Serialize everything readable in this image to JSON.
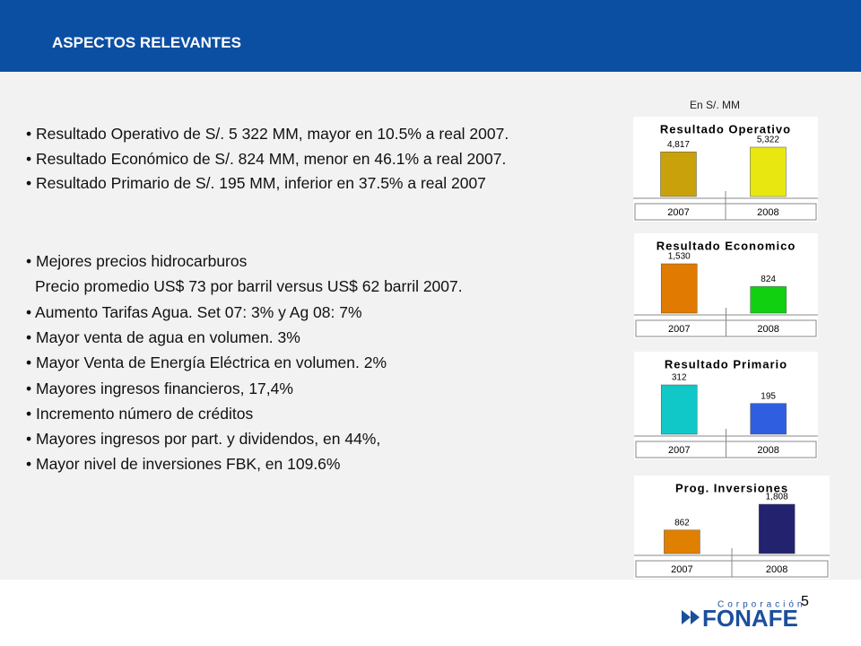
{
  "header": {
    "title": "ASPECTOS RELEVANTES"
  },
  "unit_note": "En S/. MM",
  "bullets_top": [
    "• Resultado Operativo de S/. 5 322 MM, mayor en 10.5% a real 2007.",
    "• Resultado Económico de S/. 824 MM, menor en 46.1% a real 2007.",
    "• Resultado Primario de S/. 195 MM, inferior en 37.5% a real 2007"
  ],
  "bullets_bottom": [
    "• Mejores precios hidrocarburos",
    "Precio promedio US$ 73 por barril versus US$ 62 barril 2007.",
    "• Aumento Tarifas Agua. Set 07: 3% y Ag 08: 7%",
    "• Mayor venta de agua en volumen. 3%",
    "• Mayor Venta de Energía Eléctrica en volumen.  2%",
    "• Mayores ingresos financieros, 17,4%",
    "• Incremento número de créditos",
    "• Mayores ingresos por part. y dividendos, en 44%,",
    "• Mayor nivel de inversiones  FBK, en 109.6%"
  ],
  "chart_data": [
    {
      "type": "bar",
      "title": "Resultado Operativo",
      "categories": [
        "2007",
        "2008"
      ],
      "values": [
        4817,
        5322
      ],
      "value_labels": [
        "4,817",
        "5,322"
      ],
      "colors": [
        "#c9a10a",
        "#e8e810"
      ]
    },
    {
      "type": "bar",
      "title": "Resultado Economico",
      "categories": [
        "2007",
        "2008"
      ],
      "values": [
        1530,
        824
      ],
      "value_labels": [
        "1,530",
        "824"
      ],
      "colors": [
        "#e07a00",
        "#10d010"
      ]
    },
    {
      "type": "bar",
      "title": "Resultado Primario",
      "categories": [
        "2007",
        "2008"
      ],
      "values": [
        312,
        195
      ],
      "colors": [
        "#10c8c8",
        "#2f5fe0"
      ]
    },
    {
      "type": "bar",
      "title": "Prog. Inversiones",
      "categories": [
        "2007",
        "2008"
      ],
      "values": [
        862,
        1808
      ],
      "value_labels": [
        "862",
        "1,808"
      ],
      "colors": [
        "#e08000",
        "#22226e"
      ]
    }
  ],
  "page_number": "5",
  "logo": {
    "tagline": "Corporación",
    "name": "FONAFE"
  }
}
